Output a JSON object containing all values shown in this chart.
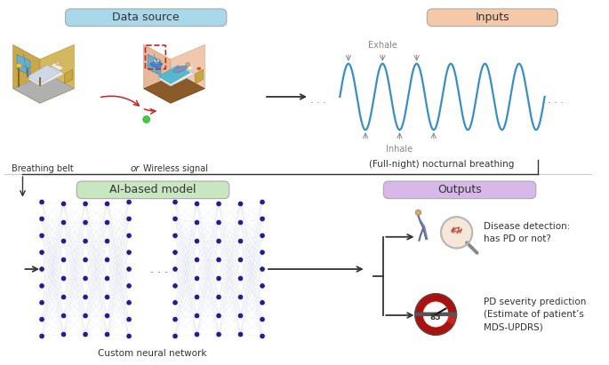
{
  "title_datasource": "Data source",
  "title_inputs": "Inputs",
  "title_aimodel": "AI-based model",
  "title_outputs": "Outputs",
  "label_breathing_belt": "Breathing belt",
  "label_or": "or",
  "label_wireless": "Wireless signal",
  "label_nocturnal": "(Full-night) nocturnal breathing",
  "label_neural_network": "Custom neural network",
  "label_exhale": "Exhale",
  "label_inhale": "Inhale",
  "label_disease": "Disease detection:\nhas PD or not?",
  "label_severity": "PD severity prediction\n(Estimate of patient’s\nMDS-UPDRS)",
  "label_85": "85",
  "box_datasource_color": "#a8d8ea",
  "box_inputs_color": "#f5c9a8",
  "box_aimodel_color": "#c8e6c0",
  "box_outputs_color": "#d8b8e8",
  "wave_color": "#3a8fc0",
  "node_color": "#2a1a8a",
  "connection_color": "#c0c8e0",
  "bg_color": "#ffffff",
  "arrow_color": "#333333",
  "red_arrow_color": "#cc2222",
  "gray_text": "#888888"
}
